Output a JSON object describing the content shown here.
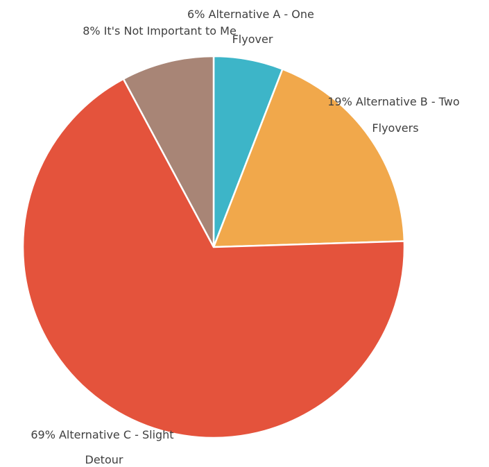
{
  "chart_data": {
    "type": "pie",
    "start_angle_deg": 0,
    "direction": "clockwise",
    "slices": [
      {
        "label_lines": [
          "6% Alternative A - One",
          "Flyover"
        ],
        "value": 6,
        "color": "#3db5c8"
      },
      {
        "label_lines": [
          "19% Alternative B - Two",
          "Flyovers"
        ],
        "value": 19,
        "color": "#f1a84b"
      },
      {
        "label_lines": [
          "69% Alternative C - Slight",
          "Detour"
        ],
        "value": 69,
        "color": "#e4533c"
      },
      {
        "label_lines": [
          "8% It's Not Important to Me"
        ],
        "value": 8,
        "color": "#a88576"
      }
    ],
    "legend": "none"
  }
}
